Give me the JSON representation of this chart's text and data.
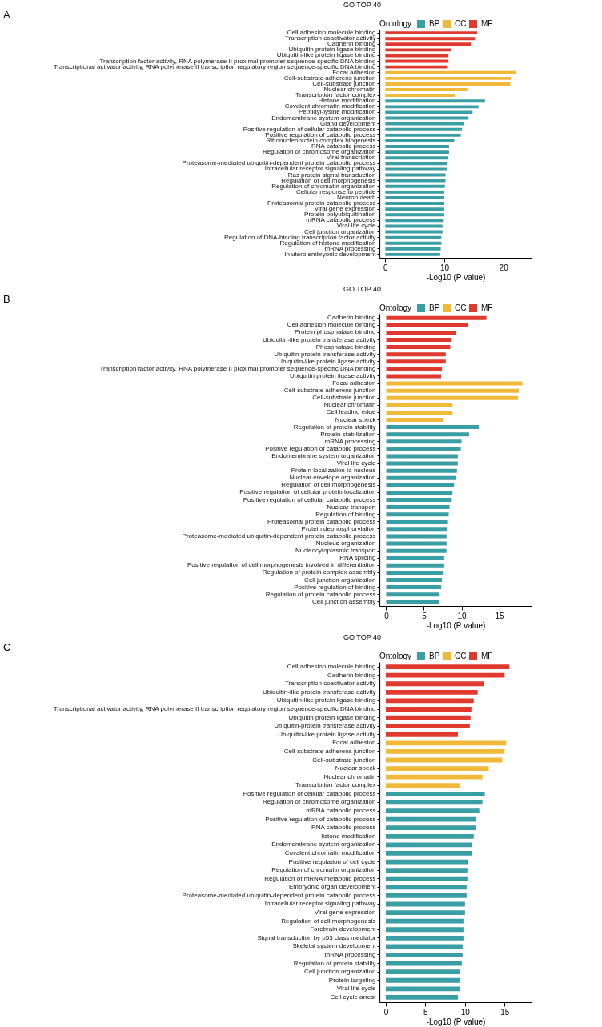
{
  "chart_data": [
    {
      "type": "bar",
      "orientation": "horizontal",
      "title": "GO TOP 40",
      "xlabel": "-Log10 (P value)",
      "legend_title": "Ontology",
      "legend": "top",
      "grid": false,
      "annotations": [
        "A"
      ],
      "xlim": [
        -1,
        24.8
      ],
      "xticks": [
        0,
        10,
        20
      ],
      "categories": [
        "Cell adhesion molecule binding",
        "Transcription coactivator activity",
        "Cadherin binding",
        "Ubiquitin protein ligase binding",
        "Ubiquitin-like protein ligase binding",
        "Transcription factor activity, RNA polymerase II proximal promoter sequence-specific DNA binding",
        "Transcriptional activator activity, RNA polymerase II transcription regulatory region sequence-specific DNA binding",
        "Focal adhesion",
        "Cell-substrate adherens junction",
        "Cell-substrate junction",
        "Nuclear chromatin",
        "Transcription factor complex",
        "Histone modification",
        "Covalent chromatin modification",
        "Peptidyl-lysine modification",
        "Endomembrane system organization",
        "Gland development",
        "Positive regulation of cellular catabolic process",
        "Positive regulation of catabolic process",
        "Ribonucleoprotein complex biogenesis",
        "RNA catabolic process",
        "Regulation of chromosome organization",
        "Viral transcription",
        "Proteasome-mediated ubiquitin-dependent protein catabolic process",
        "Intracellular receptor signaling pathway",
        "Ras protein signal transduction",
        "Regulation of cell morphogenesis",
        "Regulation of chromatin organization",
        "Cellular response to peptide",
        "Neuron death",
        "Proteasomal protein catabolic process",
        "Viral gene expression",
        "Protein polyubiquitination",
        "mRNA catabolic process",
        "Viral life cycle",
        "Cell junction organization",
        "Regulation of DNA-binding transcription factor activity",
        "Regulation of histone modification",
        "mRNA processing",
        "In utero embryonic development"
      ],
      "series": [
        {
          "name": "BP",
          "color": "#3a9ea5",
          "values": [
            null,
            null,
            null,
            null,
            null,
            null,
            null,
            null,
            null,
            null,
            null,
            null,
            16.9,
            15.8,
            14.8,
            14.1,
            13.4,
            13.0,
            12.8,
            11.7,
            10.8,
            10.8,
            10.7,
            10.5,
            10.4,
            10.2,
            10.2,
            10.1,
            10.0,
            10.0,
            10.0,
            10.0,
            10.0,
            9.9,
            9.7,
            9.7,
            9.5,
            9.5,
            9.4,
            9.3
          ]
        },
        {
          "name": "CC",
          "color": "#f0b93a",
          "values": [
            null,
            null,
            null,
            null,
            null,
            null,
            null,
            22.2,
            21.3,
            21.2,
            13.9,
            11.8,
            null,
            null,
            null,
            null,
            null,
            null,
            null,
            null,
            null,
            null,
            null,
            null,
            null,
            null,
            null,
            null,
            null,
            null,
            null,
            null,
            null,
            null,
            null,
            null,
            null,
            null,
            null,
            null
          ]
        },
        {
          "name": "MF",
          "color": "#e03a2e",
          "values": [
            15.6,
            15.2,
            14.5,
            11.1,
            10.7,
            10.7,
            10.6,
            null,
            null,
            null,
            null,
            null,
            null,
            null,
            null,
            null,
            null,
            null,
            null,
            null,
            null,
            null,
            null,
            null,
            null,
            null,
            null,
            null,
            null,
            null,
            null,
            null,
            null,
            null,
            null,
            null,
            null,
            null,
            null,
            null
          ]
        }
      ]
    },
    {
      "type": "bar",
      "orientation": "horizontal",
      "title": "GO TOP 40",
      "xlabel": "-Log10 (P value)",
      "legend_title": "Ontology",
      "legend": "top",
      "grid": false,
      "annotations": [
        "B"
      ],
      "xlim": [
        -0.9,
        19.3
      ],
      "xticks": [
        0,
        5,
        10,
        15
      ],
      "categories": [
        "Cadherin binding",
        "Cell adhesion molecule binding",
        "Protein phosphatase binding",
        "Ubiquitin-like protein transferase activity",
        "Phosphatase binding",
        "Ubiquitin-protein transferase activity",
        "Ubiquitin-like protein ligase activity",
        "Transcription factor activity, RNA polymerase II proximal promoter sequence-specific DNA binding",
        "Ubiquitin protein ligase activity",
        "Focal adhesion",
        "Cell-substrate adherens junction",
        "Cell-substrate junction",
        "Nuclear chromatin",
        "Cell leading edge",
        "Nuclear speck",
        "Regulation of protein stability",
        "Protein stabilization",
        "mRNA processing",
        "Positive regulation of catabolic process",
        "Endomembrane system organization",
        "Viral life cycle",
        "Protein localization to nucleus",
        "Nuclear envelope organization",
        "Regulation of cell morphogenesis",
        "Positive regulation of cellular protein localization",
        "Positive regulation of cellular catabolic process",
        "Nuclear transport",
        "Regulation of binding",
        "Proteasomal protein catabolic process",
        "Protein dephosphorylation",
        "Proteasome-mediated ubiquitin-dependent protein catabolic process",
        "Nucleus organization",
        "Nucleocytoplasmic transport",
        "RNA splicing",
        "Positive regulation of cell morphogenesis involved in differentiation",
        "Regulation of protein complex assembly",
        "Cell junction organization",
        "Positive regulation of binding",
        "Regulation of protein catabolic process",
        "Cell junction assembly"
      ],
      "series": [
        {
          "name": "BP",
          "color": "#3a9ea5",
          "values": [
            null,
            null,
            null,
            null,
            null,
            null,
            null,
            null,
            null,
            null,
            null,
            null,
            null,
            null,
            null,
            12.3,
            11.0,
            10.0,
            9.9,
            9.5,
            9.5,
            9.4,
            9.3,
            9.0,
            8.8,
            8.7,
            8.4,
            8.3,
            8.2,
            8.1,
            8.0,
            8.0,
            8.0,
            7.7,
            7.7,
            7.6,
            7.4,
            7.3,
            7.1,
            7.0
          ]
        },
        {
          "name": "CC",
          "color": "#f0b93a",
          "values": [
            null,
            null,
            null,
            null,
            null,
            null,
            null,
            null,
            null,
            18.1,
            17.6,
            17.5,
            8.8,
            8.8,
            7.5,
            null,
            null,
            null,
            null,
            null,
            null,
            null,
            null,
            null,
            null,
            null,
            null,
            null,
            null,
            null,
            null,
            null,
            null,
            null,
            null,
            null,
            null,
            null,
            null,
            null
          ]
        },
        {
          "name": "MF",
          "color": "#e03a2e",
          "values": [
            13.3,
            10.9,
            9.3,
            8.7,
            8.5,
            7.9,
            7.9,
            7.4,
            7.3,
            null,
            null,
            null,
            null,
            null,
            null,
            null,
            null,
            null,
            null,
            null,
            null,
            null,
            null,
            null,
            null,
            null,
            null,
            null,
            null,
            null,
            null,
            null,
            null,
            null,
            null,
            null,
            null,
            null,
            null,
            null
          ]
        }
      ]
    },
    {
      "type": "bar",
      "orientation": "horizontal",
      "title": "GO TOP 40",
      "xlabel": "-Log10 (P value)",
      "legend_title": "Ontology",
      "legend": "top",
      "grid": false,
      "annotations": [
        "C"
      ],
      "xlim": [
        -0.8,
        18.4
      ],
      "xticks": [
        0,
        5,
        10,
        15
      ],
      "categories": [
        "Cell adhesion molecule binding",
        "Cadherin binding",
        "Transcription coactivator activity",
        "Ubiquitin-like protein transferase activity",
        "Ubiquitin-like protein ligase binding",
        "Transcriptional activator activity, RNA polymerase II transcription regulatory region sequence-specific DNA binding",
        "Ubiquitin protein ligase binding",
        "Ubiquitin-protein transferase activity",
        "Ubiquitin-like protein ligase activity",
        "Focal adhesion",
        "Cell-substrate adherens junction",
        "Cell-substrate junction",
        "Nuclear speck",
        "Nuclear chromatin",
        "Transcription factor complex",
        "Positive regulation of cellular catabolic process",
        "Regulation of chromosome organization",
        "mRNA catabolic process",
        "Positive regulation of catabolic process",
        "RNA catabolic process",
        "Histone modification",
        "Endomembrane system organization",
        "Covalent chromatin modification",
        "Positive regulation of cell cycle",
        "Regulation of chromatin organization",
        "Regulation of mRNA metabolic process",
        "Embryonic organ development",
        "Proteasome-mediated ubiquitin-dependent protein catabolic process",
        "Intracellular receptor signaling pathway",
        "Viral gene expression",
        "Regulation of cell morphogenesis",
        "Forebrain development",
        "Signal transduction by p53 class mediator",
        "Skeletal system development",
        "mRNA processing",
        "Regulation of protein stability",
        "Cell junction organization",
        "Protein targeting",
        "Viral life cycle",
        "Cell cycle arrest"
      ],
      "series": [
        {
          "name": "BP",
          "color": "#3a9ea5",
          "values": [
            null,
            null,
            null,
            null,
            null,
            null,
            null,
            null,
            null,
            null,
            null,
            null,
            null,
            null,
            null,
            12.5,
            12.2,
            11.8,
            11.4,
            11.4,
            11.1,
            10.9,
            10.9,
            10.4,
            10.3,
            10.3,
            10.2,
            10.2,
            10.0,
            10.0,
            9.8,
            9.8,
            9.8,
            9.7,
            9.7,
            9.6,
            9.4,
            9.3,
            9.3,
            9.1
          ]
        },
        {
          "name": "CC",
          "color": "#f0b93a",
          "values": [
            null,
            null,
            null,
            null,
            null,
            null,
            null,
            null,
            null,
            15.2,
            15.0,
            14.7,
            13.0,
            12.2,
            9.3,
            null,
            null,
            null,
            null,
            null,
            null,
            null,
            null,
            null,
            null,
            null,
            null,
            null,
            null,
            null,
            null,
            null,
            null,
            null,
            null,
            null,
            null,
            null,
            null,
            null
          ]
        },
        {
          "name": "MF",
          "color": "#e03a2e",
          "values": [
            15.6,
            15.0,
            12.4,
            11.6,
            11.1,
            10.8,
            10.7,
            10.6,
            9.1,
            null,
            null,
            null,
            null,
            null,
            null,
            null,
            null,
            null,
            null,
            null,
            null,
            null,
            null,
            null,
            null,
            null,
            null,
            null,
            null,
            null,
            null,
            null,
            null,
            null,
            null,
            null,
            null,
            null,
            null,
            null
          ]
        }
      ]
    }
  ]
}
